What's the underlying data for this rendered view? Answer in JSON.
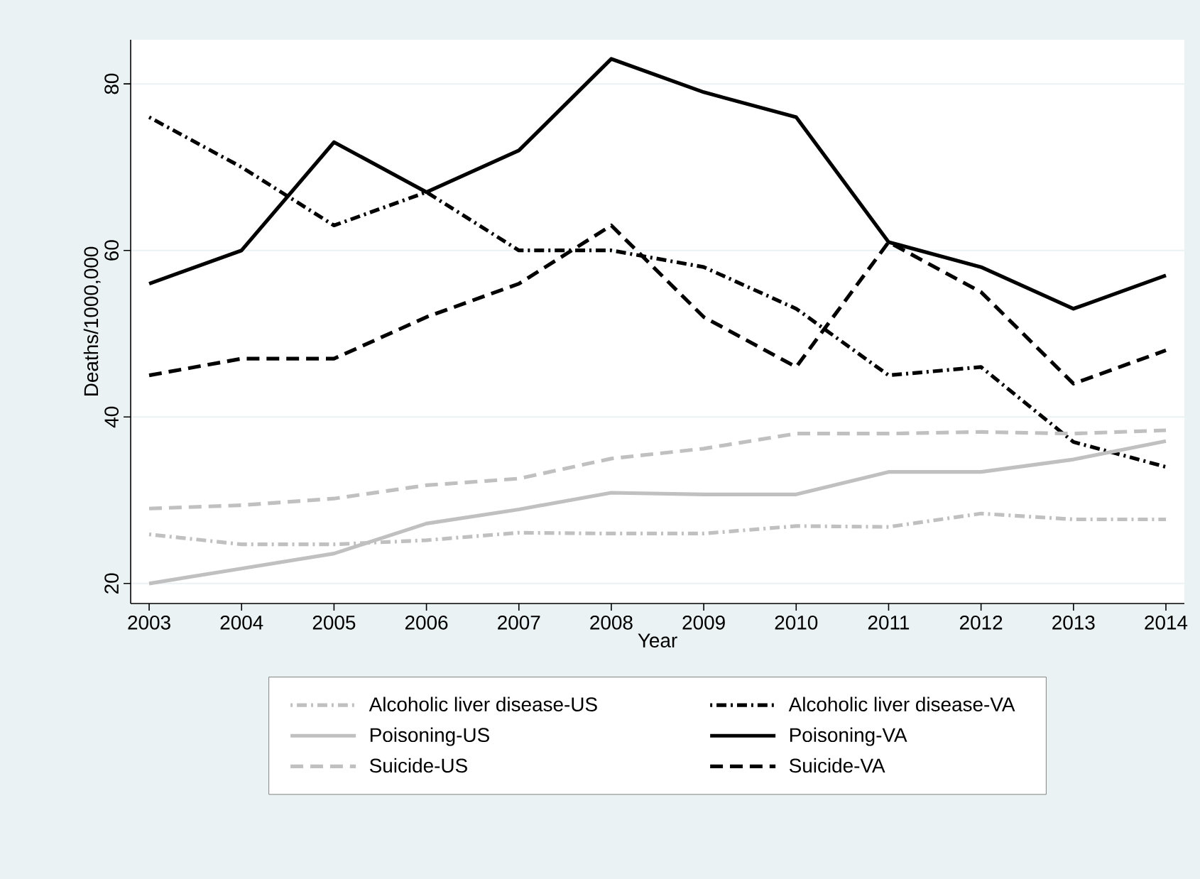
{
  "chart_data": {
    "type": "line",
    "xlabel": "Year",
    "ylabel": "Deaths/1000,000",
    "x": [
      2003,
      2004,
      2005,
      2006,
      2007,
      2008,
      2009,
      2010,
      2011,
      2012,
      2013,
      2014
    ],
    "xlim": [
      2002.8,
      2014.2
    ],
    "xticks": [
      2003,
      2004,
      2005,
      2006,
      2007,
      2008,
      2009,
      2010,
      2011,
      2012,
      2013,
      2014
    ],
    "ylim": [
      17.6,
      85.3
    ],
    "yticks": [
      20,
      40,
      60,
      80
    ],
    "grid": "y",
    "legend": "bottom",
    "marker": "none",
    "series": [
      {
        "name": "Alcoholic liver disease-US",
        "color": "#c0c0c0",
        "line_style": "dashdot",
        "values": [
          25.9,
          24.7,
          24.7,
          25.2,
          26.1,
          26.0,
          26.0,
          26.9,
          26.8,
          28.4,
          27.7,
          27.7
        ]
      },
      {
        "name": "Alcoholic liver disease-VA",
        "color": "#000000",
        "line_style": "dashdot",
        "values": [
          76,
          70,
          63,
          67,
          60,
          60,
          58,
          53,
          45,
          46,
          37,
          34
        ]
      },
      {
        "name": "Poisoning-US",
        "color": "#c0c0c0",
        "line_style": "solid",
        "values": [
          20.0,
          21.8,
          23.6,
          27.2,
          28.9,
          30.9,
          30.7,
          30.7,
          33.4,
          33.4,
          34.9,
          37.1
        ]
      },
      {
        "name": "Poisoning-VA",
        "color": "#000000",
        "line_style": "solid",
        "values": [
          56,
          60,
          73,
          67,
          72,
          83,
          79,
          76,
          61,
          58,
          53,
          57
        ]
      },
      {
        "name": "Suicide-US",
        "color": "#c0c0c0",
        "line_style": "dashed",
        "values": [
          29.0,
          29.4,
          30.2,
          31.8,
          32.6,
          35.0,
          36.2,
          38.0,
          38.0,
          38.2,
          38.0,
          38.4
        ]
      },
      {
        "name": "Suicide-VA",
        "color": "#000000",
        "line_style": "dashed",
        "values": [
          45,
          47,
          47,
          52,
          56,
          63,
          52,
          46,
          61,
          55,
          44,
          48
        ]
      }
    ]
  }
}
